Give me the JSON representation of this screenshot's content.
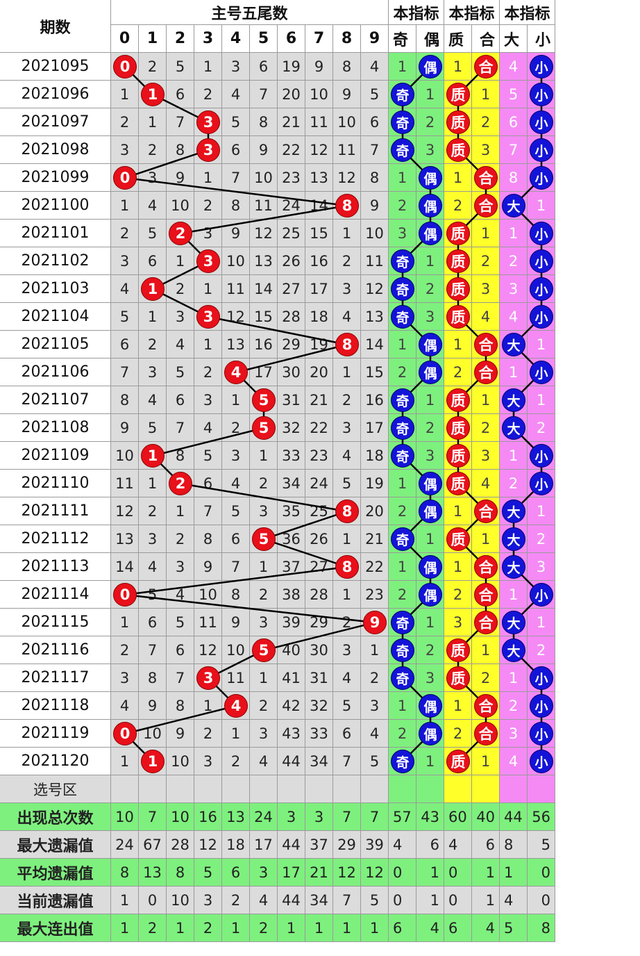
{
  "header": {
    "period_label": "期数",
    "main_title": "主号五尾数",
    "digit_labels": [
      "0",
      "1",
      "2",
      "3",
      "4",
      "5",
      "6",
      "7",
      "8",
      "9"
    ],
    "indicator_titles": [
      "本指标",
      "本指标",
      "本指标"
    ],
    "odd_label": "奇",
    "even_label": "偶",
    "prime_label": "质",
    "composite_label": "合",
    "big_label": "大",
    "small_label": "小"
  },
  "select_area_label": "选号区",
  "colors": {
    "gray": "#dcdcdc",
    "green": "#7ef07e",
    "yellow": "#ffff2a",
    "pink": "#f58af5",
    "red_ball": "#e8101a",
    "blue_ball": "#1414d8"
  },
  "chart_data": {
    "type": "table",
    "rows": [
      {
        "period": "2021095",
        "digits": [
          "0",
          "2",
          "5",
          "1",
          "3",
          "6",
          "19",
          "9",
          "8",
          "4"
        ],
        "hit": 0,
        "oe": {
          "odd": "1",
          "even": "偶",
          "hit": "even"
        },
        "pc": {
          "prime": "1",
          "comp": "合",
          "hit": "comp"
        },
        "bs": {
          "big": "4",
          "small": "小",
          "hit": "small"
        }
      },
      {
        "period": "2021096",
        "digits": [
          "1",
          "1",
          "6",
          "2",
          "4",
          "7",
          "20",
          "10",
          "9",
          "5"
        ],
        "hit": 1,
        "oe": {
          "odd": "奇",
          "even": "1",
          "hit": "odd"
        },
        "pc": {
          "prime": "质",
          "comp": "1",
          "hit": "prime"
        },
        "bs": {
          "big": "5",
          "small": "小",
          "hit": "small"
        }
      },
      {
        "period": "2021097",
        "digits": [
          "2",
          "1",
          "7",
          "3",
          "5",
          "8",
          "21",
          "11",
          "10",
          "6"
        ],
        "hit": 3,
        "oe": {
          "odd": "奇",
          "even": "2",
          "hit": "odd"
        },
        "pc": {
          "prime": "质",
          "comp": "2",
          "hit": "prime"
        },
        "bs": {
          "big": "6",
          "small": "小",
          "hit": "small"
        }
      },
      {
        "period": "2021098",
        "digits": [
          "3",
          "2",
          "8",
          "3",
          "6",
          "9",
          "22",
          "12",
          "11",
          "7"
        ],
        "hit": 3,
        "oe": {
          "odd": "奇",
          "even": "3",
          "hit": "odd"
        },
        "pc": {
          "prime": "质",
          "comp": "3",
          "hit": "prime"
        },
        "bs": {
          "big": "7",
          "small": "小",
          "hit": "small"
        }
      },
      {
        "period": "2021099",
        "digits": [
          "0",
          "3",
          "9",
          "1",
          "7",
          "10",
          "23",
          "13",
          "12",
          "8"
        ],
        "hit": 0,
        "oe": {
          "odd": "1",
          "even": "偶",
          "hit": "even"
        },
        "pc": {
          "prime": "1",
          "comp": "合",
          "hit": "comp"
        },
        "bs": {
          "big": "8",
          "small": "小",
          "hit": "small"
        }
      },
      {
        "period": "2021100",
        "digits": [
          "1",
          "4",
          "10",
          "2",
          "8",
          "11",
          "24",
          "14",
          "8",
          "9"
        ],
        "hit": 8,
        "oe": {
          "odd": "2",
          "even": "偶",
          "hit": "even"
        },
        "pc": {
          "prime": "2",
          "comp": "合",
          "hit": "comp"
        },
        "bs": {
          "big": "大",
          "small": "1",
          "hit": "big"
        }
      },
      {
        "period": "2021101",
        "digits": [
          "2",
          "5",
          "2",
          "3",
          "9",
          "12",
          "25",
          "15",
          "1",
          "10"
        ],
        "hit": 2,
        "oe": {
          "odd": "3",
          "even": "偶",
          "hit": "even"
        },
        "pc": {
          "prime": "质",
          "comp": "1",
          "hit": "prime"
        },
        "bs": {
          "big": "1",
          "small": "小",
          "hit": "small"
        }
      },
      {
        "period": "2021102",
        "digits": [
          "3",
          "6",
          "1",
          "3",
          "10",
          "13",
          "26",
          "16",
          "2",
          "11"
        ],
        "hit": 3,
        "oe": {
          "odd": "奇",
          "even": "1",
          "hit": "odd"
        },
        "pc": {
          "prime": "质",
          "comp": "2",
          "hit": "prime"
        },
        "bs": {
          "big": "2",
          "small": "小",
          "hit": "small"
        }
      },
      {
        "period": "2021103",
        "digits": [
          "4",
          "1",
          "2",
          "1",
          "11",
          "14",
          "27",
          "17",
          "3",
          "12"
        ],
        "hit": 1,
        "oe": {
          "odd": "奇",
          "even": "2",
          "hit": "odd"
        },
        "pc": {
          "prime": "质",
          "comp": "3",
          "hit": "prime"
        },
        "bs": {
          "big": "3",
          "small": "小",
          "hit": "small"
        }
      },
      {
        "period": "2021104",
        "digits": [
          "5",
          "1",
          "3",
          "3",
          "12",
          "15",
          "28",
          "18",
          "4",
          "13"
        ],
        "hit": 3,
        "oe": {
          "odd": "奇",
          "even": "3",
          "hit": "odd"
        },
        "pc": {
          "prime": "质",
          "comp": "4",
          "hit": "prime"
        },
        "bs": {
          "big": "4",
          "small": "小",
          "hit": "small"
        }
      },
      {
        "period": "2021105",
        "digits": [
          "6",
          "2",
          "4",
          "1",
          "13",
          "16",
          "29",
          "19",
          "8",
          "14"
        ],
        "hit": 8,
        "oe": {
          "odd": "1",
          "even": "偶",
          "hit": "even"
        },
        "pc": {
          "prime": "1",
          "comp": "合",
          "hit": "comp"
        },
        "bs": {
          "big": "大",
          "small": "1",
          "hit": "big"
        }
      },
      {
        "period": "2021106",
        "digits": [
          "7",
          "3",
          "5",
          "2",
          "4",
          "17",
          "30",
          "20",
          "1",
          "15"
        ],
        "hit": 4,
        "oe": {
          "odd": "2",
          "even": "偶",
          "hit": "even"
        },
        "pc": {
          "prime": "2",
          "comp": "合",
          "hit": "comp"
        },
        "bs": {
          "big": "1",
          "small": "小",
          "hit": "small"
        }
      },
      {
        "period": "2021107",
        "digits": [
          "8",
          "4",
          "6",
          "3",
          "1",
          "5",
          "31",
          "21",
          "2",
          "16"
        ],
        "hit": 5,
        "oe": {
          "odd": "奇",
          "even": "1",
          "hit": "odd"
        },
        "pc": {
          "prime": "质",
          "comp": "1",
          "hit": "prime"
        },
        "bs": {
          "big": "大",
          "small": "1",
          "hit": "big"
        }
      },
      {
        "period": "2021108",
        "digits": [
          "9",
          "5",
          "7",
          "4",
          "2",
          "5",
          "32",
          "22",
          "3",
          "17"
        ],
        "hit": 5,
        "oe": {
          "odd": "奇",
          "even": "2",
          "hit": "odd"
        },
        "pc": {
          "prime": "质",
          "comp": "2",
          "hit": "prime"
        },
        "bs": {
          "big": "大",
          "small": "2",
          "hit": "big"
        }
      },
      {
        "period": "2021109",
        "digits": [
          "10",
          "1",
          "8",
          "5",
          "3",
          "1",
          "33",
          "23",
          "4",
          "18"
        ],
        "hit": 1,
        "oe": {
          "odd": "奇",
          "even": "3",
          "hit": "odd"
        },
        "pc": {
          "prime": "质",
          "comp": "3",
          "hit": "prime"
        },
        "bs": {
          "big": "1",
          "small": "小",
          "hit": "small"
        }
      },
      {
        "period": "2021110",
        "digits": [
          "11",
          "1",
          "2",
          "6",
          "4",
          "2",
          "34",
          "24",
          "5",
          "19"
        ],
        "hit": 2,
        "oe": {
          "odd": "1",
          "even": "偶",
          "hit": "even"
        },
        "pc": {
          "prime": "质",
          "comp": "4",
          "hit": "prime"
        },
        "bs": {
          "big": "2",
          "small": "小",
          "hit": "small"
        }
      },
      {
        "period": "2021111",
        "digits": [
          "12",
          "2",
          "1",
          "7",
          "5",
          "3",
          "35",
          "25",
          "8",
          "20"
        ],
        "hit": 8,
        "oe": {
          "odd": "2",
          "even": "偶",
          "hit": "even"
        },
        "pc": {
          "prime": "1",
          "comp": "合",
          "hit": "comp"
        },
        "bs": {
          "big": "大",
          "small": "1",
          "hit": "big"
        }
      },
      {
        "period": "2021112",
        "digits": [
          "13",
          "3",
          "2",
          "8",
          "6",
          "5",
          "36",
          "26",
          "1",
          "21"
        ],
        "hit": 5,
        "oe": {
          "odd": "奇",
          "even": "1",
          "hit": "odd"
        },
        "pc": {
          "prime": "质",
          "comp": "1",
          "hit": "prime"
        },
        "bs": {
          "big": "大",
          "small": "2",
          "hit": "big"
        }
      },
      {
        "period": "2021113",
        "digits": [
          "14",
          "4",
          "3",
          "9",
          "7",
          "1",
          "37",
          "27",
          "8",
          "22"
        ],
        "hit": 8,
        "oe": {
          "odd": "1",
          "even": "偶",
          "hit": "even"
        },
        "pc": {
          "prime": "1",
          "comp": "合",
          "hit": "comp"
        },
        "bs": {
          "big": "大",
          "small": "3",
          "hit": "big"
        }
      },
      {
        "period": "2021114",
        "digits": [
          "0",
          "5",
          "4",
          "10",
          "8",
          "2",
          "38",
          "28",
          "1",
          "23"
        ],
        "hit": 0,
        "oe": {
          "odd": "2",
          "even": "偶",
          "hit": "even"
        },
        "pc": {
          "prime": "2",
          "comp": "合",
          "hit": "comp"
        },
        "bs": {
          "big": "1",
          "small": "小",
          "hit": "small"
        }
      },
      {
        "period": "2021115",
        "digits": [
          "1",
          "6",
          "5",
          "11",
          "9",
          "3",
          "39",
          "29",
          "2",
          "9"
        ],
        "hit": 9,
        "oe": {
          "odd": "奇",
          "even": "1",
          "hit": "odd"
        },
        "pc": {
          "prime": "3",
          "comp": "合",
          "hit": "comp"
        },
        "bs": {
          "big": "大",
          "small": "1",
          "hit": "big"
        }
      },
      {
        "period": "2021116",
        "digits": [
          "2",
          "7",
          "6",
          "12",
          "10",
          "5",
          "40",
          "30",
          "3",
          "1"
        ],
        "hit": 5,
        "oe": {
          "odd": "奇",
          "even": "2",
          "hit": "odd"
        },
        "pc": {
          "prime": "质",
          "comp": "1",
          "hit": "prime"
        },
        "bs": {
          "big": "大",
          "small": "2",
          "hit": "big"
        }
      },
      {
        "period": "2021117",
        "digits": [
          "3",
          "8",
          "7",
          "3",
          "11",
          "1",
          "41",
          "31",
          "4",
          "2"
        ],
        "hit": 3,
        "oe": {
          "odd": "奇",
          "even": "3",
          "hit": "odd"
        },
        "pc": {
          "prime": "质",
          "comp": "2",
          "hit": "prime"
        },
        "bs": {
          "big": "1",
          "small": "小",
          "hit": "small"
        }
      },
      {
        "period": "2021118",
        "digits": [
          "4",
          "9",
          "8",
          "1",
          "4",
          "2",
          "42",
          "32",
          "5",
          "3"
        ],
        "hit": 4,
        "oe": {
          "odd": "1",
          "even": "偶",
          "hit": "even"
        },
        "pc": {
          "prime": "1",
          "comp": "合",
          "hit": "comp"
        },
        "bs": {
          "big": "2",
          "small": "小",
          "hit": "small"
        }
      },
      {
        "period": "2021119",
        "digits": [
          "0",
          "10",
          "9",
          "2",
          "1",
          "3",
          "43",
          "33",
          "6",
          "4"
        ],
        "hit": 0,
        "oe": {
          "odd": "2",
          "even": "偶",
          "hit": "even"
        },
        "pc": {
          "prime": "2",
          "comp": "合",
          "hit": "comp"
        },
        "bs": {
          "big": "3",
          "small": "小",
          "hit": "small"
        }
      },
      {
        "period": "2021120",
        "digits": [
          "1",
          "1",
          "10",
          "3",
          "2",
          "4",
          "44",
          "34",
          "7",
          "5"
        ],
        "hit": 1,
        "oe": {
          "odd": "奇",
          "even": "1",
          "hit": "odd"
        },
        "pc": {
          "prime": "质",
          "comp": "1",
          "hit": "prime"
        },
        "bs": {
          "big": "4",
          "small": "小",
          "hit": "small"
        }
      }
    ],
    "summary": [
      {
        "label": "出现总次数",
        "values": [
          "10",
          "7",
          "10",
          "16",
          "13",
          "24",
          "3",
          "3",
          "7",
          "7"
        ],
        "oe": [
          "57",
          "43"
        ],
        "pc": [
          "60",
          "40"
        ],
        "bs": [
          "44",
          "56"
        ],
        "style": "green"
      },
      {
        "label": "最大遗漏值",
        "values": [
          "24",
          "67",
          "28",
          "12",
          "18",
          "17",
          "44",
          "37",
          "29",
          "39"
        ],
        "oe": [
          "4",
          "6"
        ],
        "pc": [
          "4",
          "6"
        ],
        "bs": [
          "8",
          "5"
        ],
        "style": "gray"
      },
      {
        "label": "平均遗漏值",
        "values": [
          "8",
          "13",
          "8",
          "5",
          "6",
          "3",
          "17",
          "21",
          "12",
          "12"
        ],
        "oe": [
          "0",
          "1"
        ],
        "pc": [
          "0",
          "1"
        ],
        "bs": [
          "1",
          "0"
        ],
        "style": "green"
      },
      {
        "label": "当前遗漏值",
        "values": [
          "1",
          "0",
          "10",
          "3",
          "2",
          "4",
          "44",
          "34",
          "7",
          "5"
        ],
        "oe": [
          "0",
          "1"
        ],
        "pc": [
          "0",
          "1"
        ],
        "bs": [
          "4",
          "0"
        ],
        "style": "gray"
      },
      {
        "label": "最大连出值",
        "values": [
          "1",
          "2",
          "1",
          "2",
          "1",
          "2",
          "1",
          "1",
          "1",
          "1"
        ],
        "oe": [
          "6",
          "4"
        ],
        "pc": [
          "6",
          "4"
        ],
        "bs": [
          "5",
          "8"
        ],
        "style": "green"
      }
    ]
  }
}
